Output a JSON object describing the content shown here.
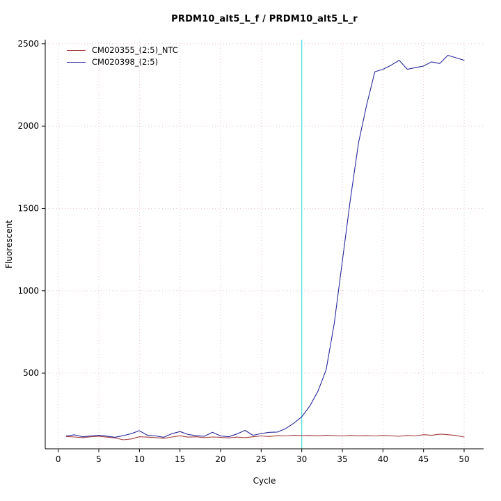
{
  "page": {
    "background": "#ffffff"
  },
  "chart_data": {
    "type": "line",
    "title": "PRDM10_alt5_L_f / PRDM10_alt5_L_r",
    "xlabel": "Cycle",
    "ylabel": "Fluorescent",
    "xlim": [
      -1.6,
      52.4
    ],
    "ylim": [
      40,
      2525
    ],
    "x_ticks": [
      0,
      5,
      10,
      15,
      20,
      25,
      30,
      35,
      40,
      45,
      50
    ],
    "y_ticks": [
      500,
      1000,
      1500,
      2000,
      2500
    ],
    "grid": true,
    "grid_color": "#e8c6c6",
    "axis_color": "#000000",
    "threshold_line": {
      "x": 30,
      "color": "#45dede"
    },
    "legend": {
      "position": "top-left",
      "entries": [
        {
          "label": "CM020355_(2:5)_NTC",
          "color": "#a23b3b"
        },
        {
          "label": "CM020398_(2:5)",
          "color": "#28289b"
        }
      ]
    },
    "x": [
      1,
      2,
      3,
      4,
      5,
      6,
      7,
      8,
      9,
      10,
      11,
      12,
      13,
      14,
      15,
      16,
      17,
      18,
      19,
      20,
      21,
      22,
      23,
      24,
      25,
      26,
      27,
      28,
      29,
      30,
      31,
      32,
      33,
      34,
      35,
      36,
      37,
      38,
      39,
      40,
      41,
      42,
      43,
      44,
      45,
      46,
      47,
      48,
      49,
      50
    ],
    "series": [
      {
        "name": "CM020355_(2:5)_NTC",
        "color": "#a23b3b",
        "values": [
          115,
          112,
          107,
          113,
          116,
          111,
          106,
          95,
          100,
          113,
          111,
          108,
          104,
          112,
          119,
          111,
          113,
          108,
          112,
          110,
          106,
          111,
          108,
          113,
          118,
          115,
          120,
          118,
          122,
          120,
          121,
          119,
          122,
          120,
          118,
          121,
          119,
          120,
          118,
          121,
          119,
          116,
          121,
          118,
          126,
          122,
          129,
          126,
          121,
          112
        ]
      },
      {
        "name": "CM020398_(2:5)",
        "color": "#28289b",
        "values": [
          118,
          125,
          113,
          118,
          122,
          117,
          110,
          120,
          132,
          150,
          122,
          118,
          110,
          132,
          145,
          127,
          120,
          116,
          140,
          118,
          113,
          130,
          152,
          122,
          133,
          140,
          142,
          162,
          195,
          235,
          300,
          390,
          520,
          800,
          1180,
          1560,
          1900,
          2130,
          2330,
          2345,
          2370,
          2400,
          2345,
          2355,
          2365,
          2390,
          2380,
          2430,
          2415,
          2400
        ]
      }
    ]
  }
}
